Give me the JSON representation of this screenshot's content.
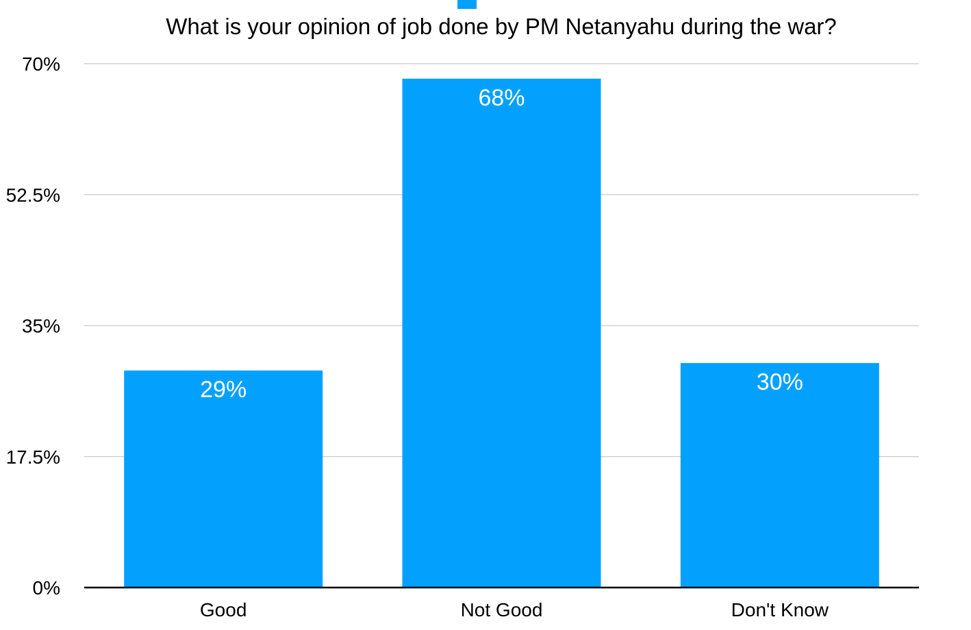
{
  "chart_data": {
    "type": "bar",
    "title": "What is your opinion of job done by PM Netanyahu during the war?",
    "xlabel": "",
    "ylabel": "",
    "categories": [
      "Good",
      "Not Good",
      "Don't Know"
    ],
    "values": [
      29,
      68,
      30
    ],
    "data_labels": [
      "29%",
      "68%",
      "30%"
    ],
    "ylim": [
      0,
      70
    ],
    "yticks": [
      0,
      17.5,
      35,
      52.5,
      70
    ],
    "ytick_labels": [
      "0%",
      "17.5%",
      "35%",
      "52.5%",
      "70%"
    ],
    "grid": true,
    "legend": "top-center",
    "colors": {
      "bar": "#03a1fd",
      "grid": "#d0d0d0",
      "axis": "#000000"
    }
  }
}
